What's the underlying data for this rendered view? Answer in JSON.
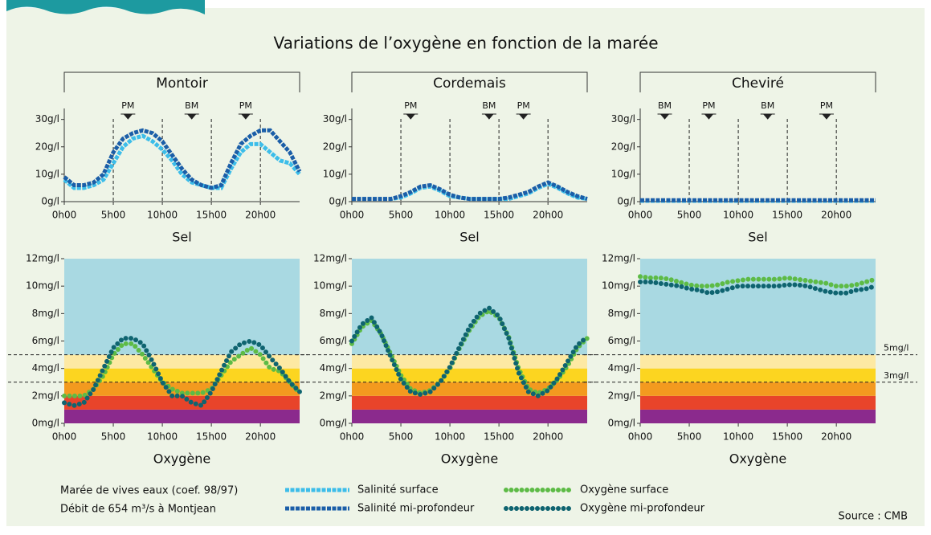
{
  "title": "Variations de l’oxygène en fonction de la marée",
  "notes": [
    "Marée de vives eaux (coef. 98/97)",
    "Débit de 654 m³/s à Montjean"
  ],
  "source": "Source : CMB",
  "chart_data": [
    {
      "type": "line",
      "title": "Montoir",
      "x_label": "Sel",
      "marker": "square",
      "grid": true,
      "x": [
        0,
        1,
        2,
        3,
        4,
        5,
        6,
        7,
        8,
        9,
        10,
        11,
        12,
        13,
        14,
        15,
        16,
        17,
        18,
        19,
        20,
        21,
        22,
        23,
        24
      ],
      "xlim": [
        0,
        24
      ],
      "xticks": [
        {
          "value": 0,
          "label": "0h00"
        },
        {
          "value": 5,
          "label": "5h00"
        },
        {
          "value": 10,
          "label": "10h00"
        },
        {
          "value": 15,
          "label": "15h00"
        },
        {
          "value": 20,
          "label": "20h00"
        }
      ],
      "ylim": [
        0,
        34
      ],
      "yticks": [
        {
          "value": 0,
          "label": "0g/l"
        },
        {
          "value": 10,
          "label": "10g/l"
        },
        {
          "value": 20,
          "label": "20g/l"
        },
        {
          "value": 30,
          "label": "30g/l"
        }
      ],
      "markers": [
        {
          "x": 6.5,
          "label": "PM"
        },
        {
          "x": 13,
          "label": "BM"
        },
        {
          "x": 18.5,
          "label": "PM"
        }
      ],
      "series": [
        {
          "name": "Salinité surface",
          "color": "#3cbde9",
          "values": [
            8,
            5,
            5,
            6,
            8,
            14,
            20,
            23,
            24,
            22,
            19,
            15,
            10,
            7,
            6,
            5,
            5,
            12,
            18,
            21,
            21,
            18,
            15,
            14,
            10
          ]
        },
        {
          "name": "Salinité mi-profondeur",
          "color": "#1b5ea8",
          "values": [
            9,
            6,
            6,
            7,
            10,
            18,
            23,
            25,
            26,
            25,
            22,
            17,
            12,
            8,
            6,
            5,
            6,
            14,
            21,
            24,
            26,
            26,
            22,
            18,
            11
          ]
        }
      ]
    },
    {
      "type": "line",
      "title": "Cordemais",
      "x_label": "Sel",
      "marker": "square",
      "grid": true,
      "x": [
        0,
        1,
        2,
        3,
        4,
        5,
        6,
        7,
        8,
        9,
        10,
        11,
        12,
        13,
        14,
        15,
        16,
        17,
        18,
        19,
        20,
        21,
        22,
        23,
        24
      ],
      "xlim": [
        0,
        24
      ],
      "xticks": [
        {
          "value": 0,
          "label": "0h00"
        },
        {
          "value": 5,
          "label": "5h00"
        },
        {
          "value": 10,
          "label": "10h00"
        },
        {
          "value": 15,
          "label": "15h00"
        },
        {
          "value": 20,
          "label": "20h00"
        }
      ],
      "ylim": [
        0,
        34
      ],
      "yticks": [
        {
          "value": 0,
          "label": "0g/l"
        },
        {
          "value": 10,
          "label": "10g/l"
        },
        {
          "value": 20,
          "label": "20g/l"
        },
        {
          "value": 30,
          "label": "30g/l"
        }
      ],
      "markers": [
        {
          "x": 6,
          "label": "PM"
        },
        {
          "x": 14,
          "label": "BM"
        },
        {
          "x": 17.5,
          "label": "PM"
        }
      ],
      "series": [
        {
          "color": "#3cbde9",
          "values": [
            1,
            1,
            1,
            1,
            1,
            1.5,
            3,
            5,
            5.5,
            4,
            2,
            1.5,
            1,
            1,
            1,
            1,
            1,
            2,
            3,
            5,
            6.5,
            5,
            3,
            1.5,
            1
          ]
        },
        {
          "color": "#1b5ea8",
          "values": [
            1,
            1,
            1,
            1,
            1,
            2,
            3.5,
            5.5,
            6,
            4.5,
            2.5,
            1.5,
            1,
            1,
            1,
            1,
            1.5,
            2.5,
            3.5,
            5.5,
            7,
            5.5,
            3.5,
            2,
            1
          ]
        }
      ]
    },
    {
      "type": "line",
      "title": "Cheviré",
      "x_label": "Sel",
      "marker": "square",
      "grid": true,
      "x": [
        0,
        1,
        2,
        3,
        4,
        5,
        6,
        7,
        8,
        9,
        10,
        11,
        12,
        13,
        14,
        15,
        16,
        17,
        18,
        19,
        20,
        21,
        22,
        23,
        24
      ],
      "xlim": [
        0,
        24
      ],
      "xticks": [
        {
          "value": 0,
          "label": "0h00"
        },
        {
          "value": 5,
          "label": "5h00"
        },
        {
          "value": 10,
          "label": "10h00"
        },
        {
          "value": 15,
          "label": "15h00"
        },
        {
          "value": 20,
          "label": "20h00"
        }
      ],
      "ylim": [
        0,
        34
      ],
      "yticks": [
        {
          "value": 0,
          "label": "0g/l"
        },
        {
          "value": 10,
          "label": "10g/l"
        },
        {
          "value": 20,
          "label": "20g/l"
        },
        {
          "value": 30,
          "label": "30g/l"
        }
      ],
      "markers": [
        {
          "x": 2.5,
          "label": "BM"
        },
        {
          "x": 7,
          "label": "PM"
        },
        {
          "x": 13,
          "label": "BM"
        },
        {
          "x": 19,
          "label": "PM"
        }
      ],
      "series": [
        {
          "color": "#3cbde9",
          "values": [
            0.3,
            0.3,
            0.3,
            0.3,
            0.3,
            0.3,
            0.3,
            0.3,
            0.3,
            0.3,
            0.3,
            0.3,
            0.3,
            0.3,
            0.3,
            0.3,
            0.3,
            0.3,
            0.3,
            0.3,
            0.3,
            0.3,
            0.3,
            0.3,
            0.3
          ]
        },
        {
          "color": "#1b5ea8",
          "values": [
            0.5,
            0.5,
            0.5,
            0.5,
            0.5,
            0.5,
            0.5,
            0.5,
            0.5,
            0.5,
            0.5,
            0.5,
            0.5,
            0.5,
            0.5,
            0.5,
            0.5,
            0.5,
            0.5,
            0.5,
            0.5,
            0.5,
            0.5,
            0.5,
            0.5
          ]
        }
      ]
    },
    {
      "type": "line",
      "x_label": "Oxygène",
      "marker": "circle",
      "grid": false,
      "x": [
        0,
        1,
        2,
        3,
        4,
        5,
        6,
        7,
        8,
        9,
        10,
        11,
        12,
        13,
        14,
        15,
        16,
        17,
        18,
        19,
        20,
        21,
        22,
        23,
        24
      ],
      "xlim": [
        0,
        24
      ],
      "xticks": [
        {
          "value": 0,
          "label": "0h00"
        },
        {
          "value": 5,
          "label": "5h00"
        },
        {
          "value": 10,
          "label": "10h00"
        },
        {
          "value": 15,
          "label": "15h00"
        },
        {
          "value": 20,
          "label": "20h00"
        }
      ],
      "ylim": [
        0,
        12
      ],
      "yticks": [
        {
          "value": 0,
          "label": "0mg/l"
        },
        {
          "value": 2,
          "label": "2mg/l"
        },
        {
          "value": 4,
          "label": "4mg/l"
        },
        {
          "value": 6,
          "label": "6mg/l"
        },
        {
          "value": 8,
          "label": "8mg/l"
        },
        {
          "value": 10,
          "label": "10mg/l"
        },
        {
          "value": 12,
          "label": "12mg/l"
        }
      ],
      "bands": [
        {
          "from": 0,
          "to": 1,
          "color": "#8b2a8d"
        },
        {
          "from": 1,
          "to": 2,
          "color": "#e8442a"
        },
        {
          "from": 2,
          "to": 3,
          "color": "#f39a1f"
        },
        {
          "from": 3,
          "to": 4,
          "color": "#fcd520"
        },
        {
          "from": 4,
          "to": 5,
          "color": "#fde9a3"
        },
        {
          "from": 5,
          "to": 12,
          "color": "#a9d9e2"
        }
      ],
      "thresholds": [
        5,
        3
      ],
      "series": [
        {
          "name": "Oxygène surface",
          "color": "#5dbb46",
          "values": [
            2,
            2,
            2,
            2.5,
            3.5,
            5,
            5.8,
            5.8,
            5,
            4,
            3,
            2.5,
            2.2,
            2.2,
            2.2,
            2.5,
            3.5,
            4.5,
            5,
            5.5,
            5,
            4,
            3.8,
            3,
            2.2
          ]
        },
        {
          "name": "Oxygène mi-profondeur",
          "color": "#0f6470",
          "values": [
            1.5,
            1.3,
            1.5,
            2.5,
            4,
            5.5,
            6.2,
            6.2,
            5.8,
            4.5,
            3,
            2,
            2,
            1.5,
            1.3,
            2.3,
            3.8,
            5.2,
            5.8,
            6,
            5.7,
            4.8,
            4,
            3,
            2.3
          ]
        }
      ]
    },
    {
      "type": "line",
      "x_label": "Oxygène",
      "marker": "circle",
      "grid": false,
      "x": [
        0,
        1,
        2,
        3,
        4,
        5,
        6,
        7,
        8,
        9,
        10,
        11,
        12,
        13,
        14,
        15,
        16,
        17,
        18,
        19,
        20,
        21,
        22,
        23,
        24
      ],
      "xlim": [
        0,
        24
      ],
      "xticks": [
        {
          "value": 0,
          "label": "0h00"
        },
        {
          "value": 5,
          "label": "5h00"
        },
        {
          "value": 10,
          "label": "10h00"
        },
        {
          "value": 15,
          "label": "15h00"
        },
        {
          "value": 20,
          "label": "20h00"
        }
      ],
      "ylim": [
        0,
        12
      ],
      "yticks": [
        {
          "value": 0,
          "label": "0mg/l"
        },
        {
          "value": 2,
          "label": "2mg/l"
        },
        {
          "value": 4,
          "label": "4mg/l"
        },
        {
          "value": 6,
          "label": "6mg/l"
        },
        {
          "value": 8,
          "label": "8mg/l"
        },
        {
          "value": 10,
          "label": "10mg/l"
        },
        {
          "value": 12,
          "label": "12mg/l"
        }
      ],
      "bands": [
        {
          "from": 0,
          "to": 1,
          "color": "#8b2a8d"
        },
        {
          "from": 1,
          "to": 2,
          "color": "#e8442a"
        },
        {
          "from": 2,
          "to": 3,
          "color": "#f39a1f"
        },
        {
          "from": 3,
          "to": 4,
          "color": "#fcd520"
        },
        {
          "from": 4,
          "to": 5,
          "color": "#fde9a3"
        },
        {
          "from": 5,
          "to": 12,
          "color": "#a9d9e2"
        }
      ],
      "thresholds": [
        5,
        3
      ],
      "series": [
        {
          "color": "#5dbb46",
          "values": [
            5.8,
            7,
            7.5,
            6.5,
            5,
            3.5,
            2.5,
            2.2,
            2.4,
            3,
            4,
            5.5,
            6.8,
            7.8,
            8.2,
            7.7,
            6.3,
            4,
            2.5,
            2.2,
            2.5,
            3.2,
            4.2,
            5.5,
            6.2
          ]
        },
        {
          "color": "#0f6470",
          "values": [
            6,
            7.2,
            7.7,
            6.5,
            4.8,
            3.2,
            2.3,
            2.1,
            2.3,
            3,
            4.1,
            5.6,
            7,
            8,
            8.4,
            7.8,
            6.2,
            3.7,
            2.3,
            2,
            2.4,
            3.3,
            4.5,
            5.7,
            6.3
          ]
        }
      ]
    },
    {
      "type": "line",
      "x_label": "Oxygène",
      "marker": "circle",
      "grid": false,
      "x": [
        0,
        1,
        2,
        3,
        4,
        5,
        6,
        7,
        8,
        9,
        10,
        11,
        12,
        13,
        14,
        15,
        16,
        17,
        18,
        19,
        20,
        21,
        22,
        23,
        24
      ],
      "xlim": [
        0,
        24
      ],
      "xticks": [
        {
          "value": 0,
          "label": "0h00"
        },
        {
          "value": 5,
          "label": "5h00"
        },
        {
          "value": 10,
          "label": "10h00"
        },
        {
          "value": 15,
          "label": "15h00"
        },
        {
          "value": 20,
          "label": "20h00"
        }
      ],
      "ylim": [
        0,
        12
      ],
      "yticks": [
        {
          "value": 0,
          "label": "0mg/l"
        },
        {
          "value": 2,
          "label": "2mg/l"
        },
        {
          "value": 4,
          "label": "4mg/l"
        },
        {
          "value": 6,
          "label": "6mg/l"
        },
        {
          "value": 8,
          "label": "8mg/l"
        },
        {
          "value": 10,
          "label": "10mg/l"
        },
        {
          "value": 12,
          "label": "12mg/l"
        }
      ],
      "bands": [
        {
          "from": 0,
          "to": 1,
          "color": "#8b2a8d"
        },
        {
          "from": 1,
          "to": 2,
          "color": "#e8442a"
        },
        {
          "from": 2,
          "to": 3,
          "color": "#f39a1f"
        },
        {
          "from": 3,
          "to": 4,
          "color": "#fcd520"
        },
        {
          "from": 4,
          "to": 5,
          "color": "#fde9a3"
        },
        {
          "from": 5,
          "to": 12,
          "color": "#a9d9e2"
        }
      ],
      "thresholds": [
        {
          "value": 5,
          "label": "5mg/l"
        },
        {
          "value": 3,
          "label": "3mg/l"
        }
      ],
      "series": [
        {
          "color": "#5dbb46",
          "values": [
            10.7,
            10.6,
            10.6,
            10.5,
            10.3,
            10.1,
            10,
            10,
            10.1,
            10.3,
            10.4,
            10.5,
            10.5,
            10.5,
            10.5,
            10.6,
            10.5,
            10.4,
            10.3,
            10.2,
            10,
            10,
            10.1,
            10.3,
            10.5
          ]
        },
        {
          "color": "#0f6470",
          "values": [
            10.3,
            10.3,
            10.2,
            10.1,
            10,
            9.8,
            9.7,
            9.5,
            9.6,
            9.8,
            10,
            10,
            10,
            10,
            10,
            10.1,
            10.1,
            10,
            9.8,
            9.6,
            9.5,
            9.5,
            9.7,
            9.8,
            10
          ]
        }
      ]
    }
  ]
}
